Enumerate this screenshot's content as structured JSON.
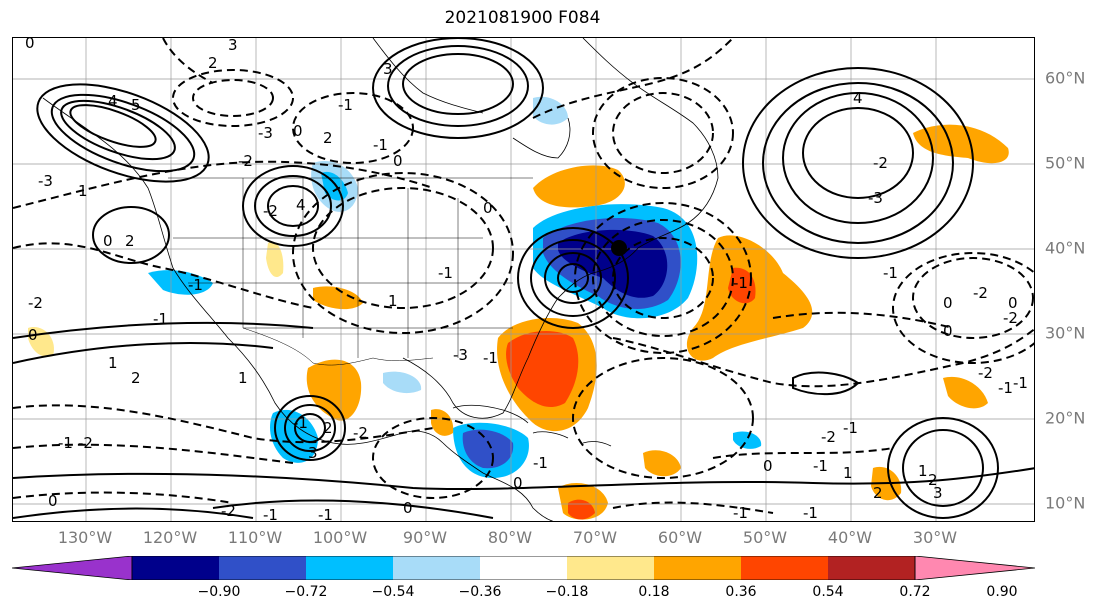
{
  "title": "2021081900 F084",
  "longitude_labels": [
    "130°W",
    "120°W",
    "110°W",
    "100°W",
    "90°W",
    "80°W",
    "70°W",
    "60°W",
    "50°W",
    "40°W",
    "30°W"
  ],
  "latitude_labels": [
    "60°N",
    "50°N",
    "40°N",
    "30°N",
    "20°N",
    "10°N"
  ],
  "colorbar": {
    "ticks": [
      "−0.90",
      "−0.72",
      "−0.54",
      "−0.36",
      "−0.18",
      "0.18",
      "0.36",
      "0.54",
      "0.72",
      "0.90"
    ],
    "colors": [
      "#9932cc",
      "#00008b",
      "#3050c8",
      "#00bfff",
      "#a8dcf8",
      "#ffffff",
      "#ffe88c",
      "#ffa500",
      "#ff4500",
      "#b22222",
      "#ff88b0"
    ]
  },
  "contour_labels": [
    "0",
    "3",
    "2",
    "5",
    "4",
    "3",
    "-1",
    "2",
    "0",
    "-3",
    "0",
    "-2",
    "-1",
    "1",
    "-3",
    "4",
    "-2",
    "2",
    "0",
    "-1",
    "-2",
    "-1",
    "0",
    "-3",
    "-2",
    "-1",
    "2",
    "1",
    "3",
    "2",
    "1",
    "-2",
    "-1",
    "0",
    "-2",
    "-1",
    "-1",
    "0",
    "-1",
    "-1",
    "0",
    "1",
    "-1",
    "-1",
    "-2",
    "0",
    "1",
    "0",
    "-1",
    "3",
    "2",
    "1",
    "2",
    "0",
    "-1",
    "-2",
    "-1",
    "4",
    "-2",
    "-3",
    "-2",
    "0",
    "-2",
    "-1",
    "-1",
    "0",
    "-1",
    "-1"
  ],
  "marker": "filled-dot"
}
